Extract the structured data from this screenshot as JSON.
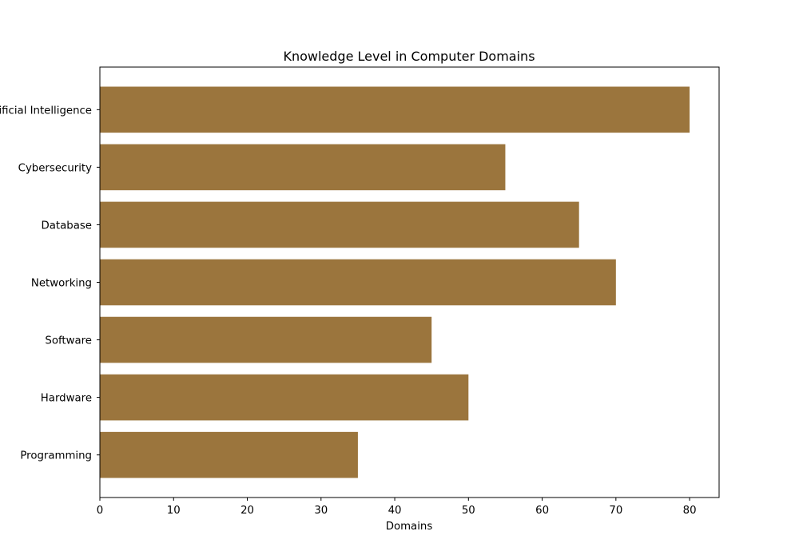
{
  "chart_data": {
    "type": "bar",
    "orientation": "horizontal",
    "title": "Knowledge Level in Computer Domains",
    "xlabel": "Domains",
    "ylabel": "",
    "categories": [
      "Programming",
      "Hardware",
      "Software",
      "Networking",
      "Database",
      "Cybersecurity",
      "Artificial Intelligence"
    ],
    "values": [
      35,
      50,
      45,
      70,
      65,
      55,
      80
    ],
    "xlim": [
      0,
      84
    ],
    "xticks": [
      0,
      10,
      20,
      30,
      40,
      50,
      60,
      70,
      80
    ],
    "bar_color": "#9b753d",
    "grid": false,
    "legend": "none"
  }
}
